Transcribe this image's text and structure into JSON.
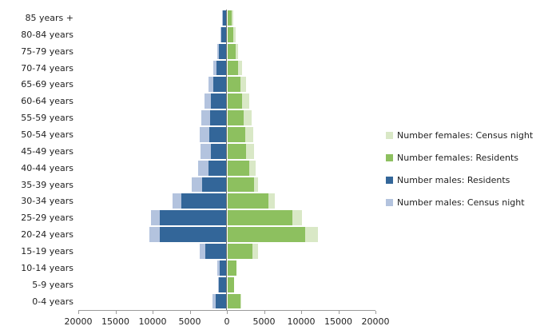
{
  "chart_data": {
    "type": "bar",
    "subtype": "population_pyramid",
    "title": "",
    "xlabel": "",
    "ylabel": "",
    "grid": false,
    "legend_position": "right",
    "categories_top_to_bottom": [
      "85 years +",
      "80-84 years",
      "75-79 years",
      "70-74 years",
      "65-69 years",
      "60-64 years",
      "55-59 years",
      "50-54 years",
      "45-49 years",
      "40-44 years",
      "35-39 years",
      "30-34 years",
      "25-29 years",
      "20-24 years",
      "15-19 years",
      "10-14 years",
      "5-9 years",
      "0-4 years"
    ],
    "series": [
      {
        "name": "Number females: Census night",
        "color": "#D9E8C6",
        "side": "right",
        "layer": "back",
        "values": [
          800,
          1100,
          1500,
          2000,
          2500,
          3000,
          3300,
          3500,
          3600,
          3800,
          4100,
          6400,
          10100,
          12200,
          4200,
          1000,
          800,
          1900
        ]
      },
      {
        "name": "Number females: Residents",
        "color": "#8DC05F",
        "side": "right",
        "layer": "front",
        "values": [
          600,
          800,
          1100,
          1500,
          1800,
          2000,
          2200,
          2400,
          2500,
          3000,
          3600,
          5500,
          8800,
          10500,
          3400,
          1200,
          900,
          1800
        ]
      },
      {
        "name": "Number males: Residents",
        "color": "#336699",
        "side": "left",
        "layer": "front",
        "values": [
          400,
          700,
          1000,
          1300,
          1700,
          2000,
          2200,
          2300,
          2000,
          2400,
          3200,
          6000,
          8900,
          9000,
          2800,
          900,
          1000,
          1400
        ]
      },
      {
        "name": "Number males: Census night",
        "color": "#B3C3DE",
        "side": "left",
        "layer": "back",
        "values": [
          500,
          800,
          1200,
          1700,
          2400,
          2900,
          3300,
          3600,
          3500,
          3800,
          4600,
          7200,
          10100,
          10400,
          3600,
          1200,
          1100,
          1800
        ]
      }
    ],
    "x_axis": {
      "min": -20000,
      "max": 20000,
      "tick_interval": 5000,
      "tick_labels": [
        "20000",
        "15000",
        "10000",
        "5000",
        "0",
        "5000",
        "10000",
        "15000",
        "20000"
      ]
    },
    "colors": {
      "axis_line": "#9B9B9B",
      "center_line": "#6E6E6E",
      "text": "#1F1F1F",
      "background": "#FFFFFF"
    }
  }
}
